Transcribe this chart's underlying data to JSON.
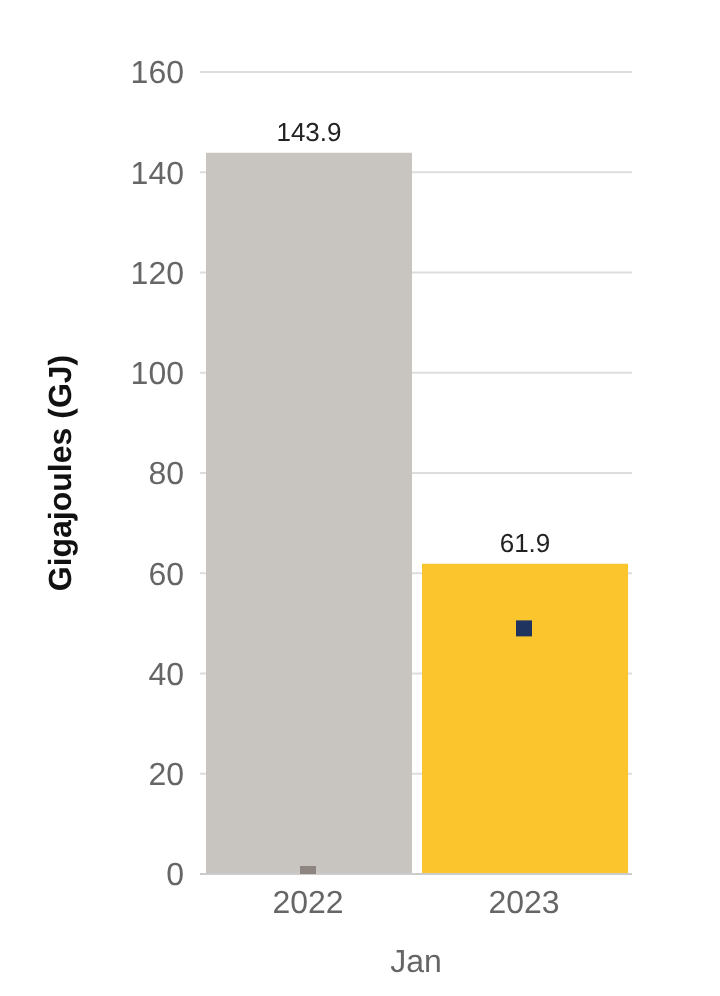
{
  "chart_data": {
    "type": "bar",
    "xlabel": "Jan",
    "ylabel": "Gigajoules (GJ)",
    "categories": [
      "2022",
      "2023"
    ],
    "series": [
      {
        "colors": [
          "#c8c5c1",
          "#fbc52d"
        ],
        "values": [
          143.9,
          61.9
        ],
        "value_labels": [
          "143.9",
          "61.9"
        ]
      },
      {
        "type": "scatter",
        "colors": [
          "#8c8580",
          "#1f3560"
        ],
        "values": [
          0,
          49
        ],
        "marker": "square"
      }
    ],
    "ylim": [
      0,
      160
    ],
    "yticks": [
      0,
      20,
      40,
      60,
      80,
      100,
      120,
      140,
      160
    ],
    "grid": "y"
  }
}
